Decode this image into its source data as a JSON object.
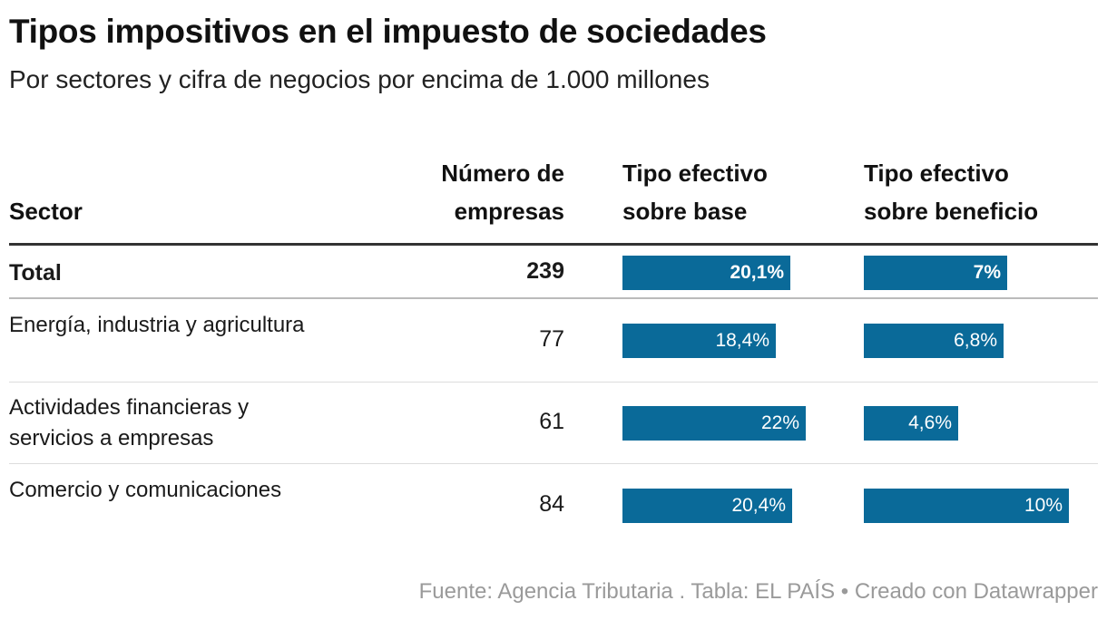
{
  "header": {
    "title": "Tipos impositivos en el impuesto de sociedades",
    "subtitle": "Por sectores y cifra de negocios por encima de 1.000 millones"
  },
  "chart_data": {
    "type": "table",
    "columns": {
      "sector": "Sector",
      "num_line1": "Número de",
      "num_line2": "empresas",
      "base_line1": "Tipo efectivo",
      "base_line2": "sobre base",
      "ben_line1": "Tipo efectivo",
      "ben_line2": "sobre beneficio"
    },
    "bar_scale": {
      "base_max": 22,
      "ben_max": 10
    },
    "rows": [
      {
        "sector": "Total",
        "empresas": "239",
        "base": 20.1,
        "base_label": "20,1%",
        "ben": 7,
        "ben_label": "7%",
        "bold": true
      },
      {
        "sector": "Energía, industria y agricultura",
        "empresas": "77",
        "base": 18.4,
        "base_label": "18,4%",
        "ben": 6.8,
        "ben_label": "6,8%",
        "bold": false
      },
      {
        "sector": "Actividades financieras y servicios a empresas",
        "empresas": "61",
        "base": 22,
        "base_label": "22%",
        "ben": 4.6,
        "ben_label": "4,6%",
        "bold": false
      },
      {
        "sector": "Comercio y comunicaciones",
        "empresas": "84",
        "base": 20.4,
        "base_label": "20,4%",
        "ben": 10,
        "ben_label": "10%",
        "bold": false
      }
    ],
    "colors": {
      "bar": "#0a6a99"
    }
  },
  "footer": {
    "source": "Fuente: Agencia Tributaria . Tabla: EL PAÍS • Creado con Datawrapper"
  }
}
